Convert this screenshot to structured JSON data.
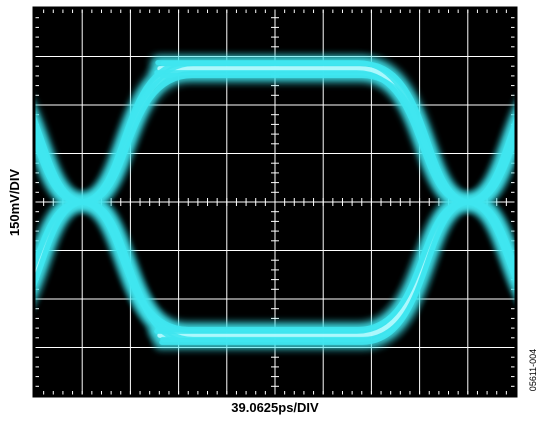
{
  "chart_data": {
    "type": "eye_diagram",
    "xlabel": "39.0625ps/DIV",
    "ylabel": "150mV/DIV",
    "grid": true,
    "divisions": {
      "x": 10,
      "y": 8
    },
    "xlim": [
      0,
      10
    ],
    "ylim": [
      -4,
      4
    ],
    "x_unit_per_div": "39.0625 ps",
    "y_unit_per_div": "150 mV",
    "levels": {
      "high_div": 2.75,
      "low_div": -2.75
    },
    "crossings_div": [
      1,
      9
    ],
    "crossing_level_div": 0,
    "background_color": "#000000",
    "trace_color": "#3fe6f0",
    "grid_color": "#ffffff"
  },
  "figure_id": "05611-004"
}
